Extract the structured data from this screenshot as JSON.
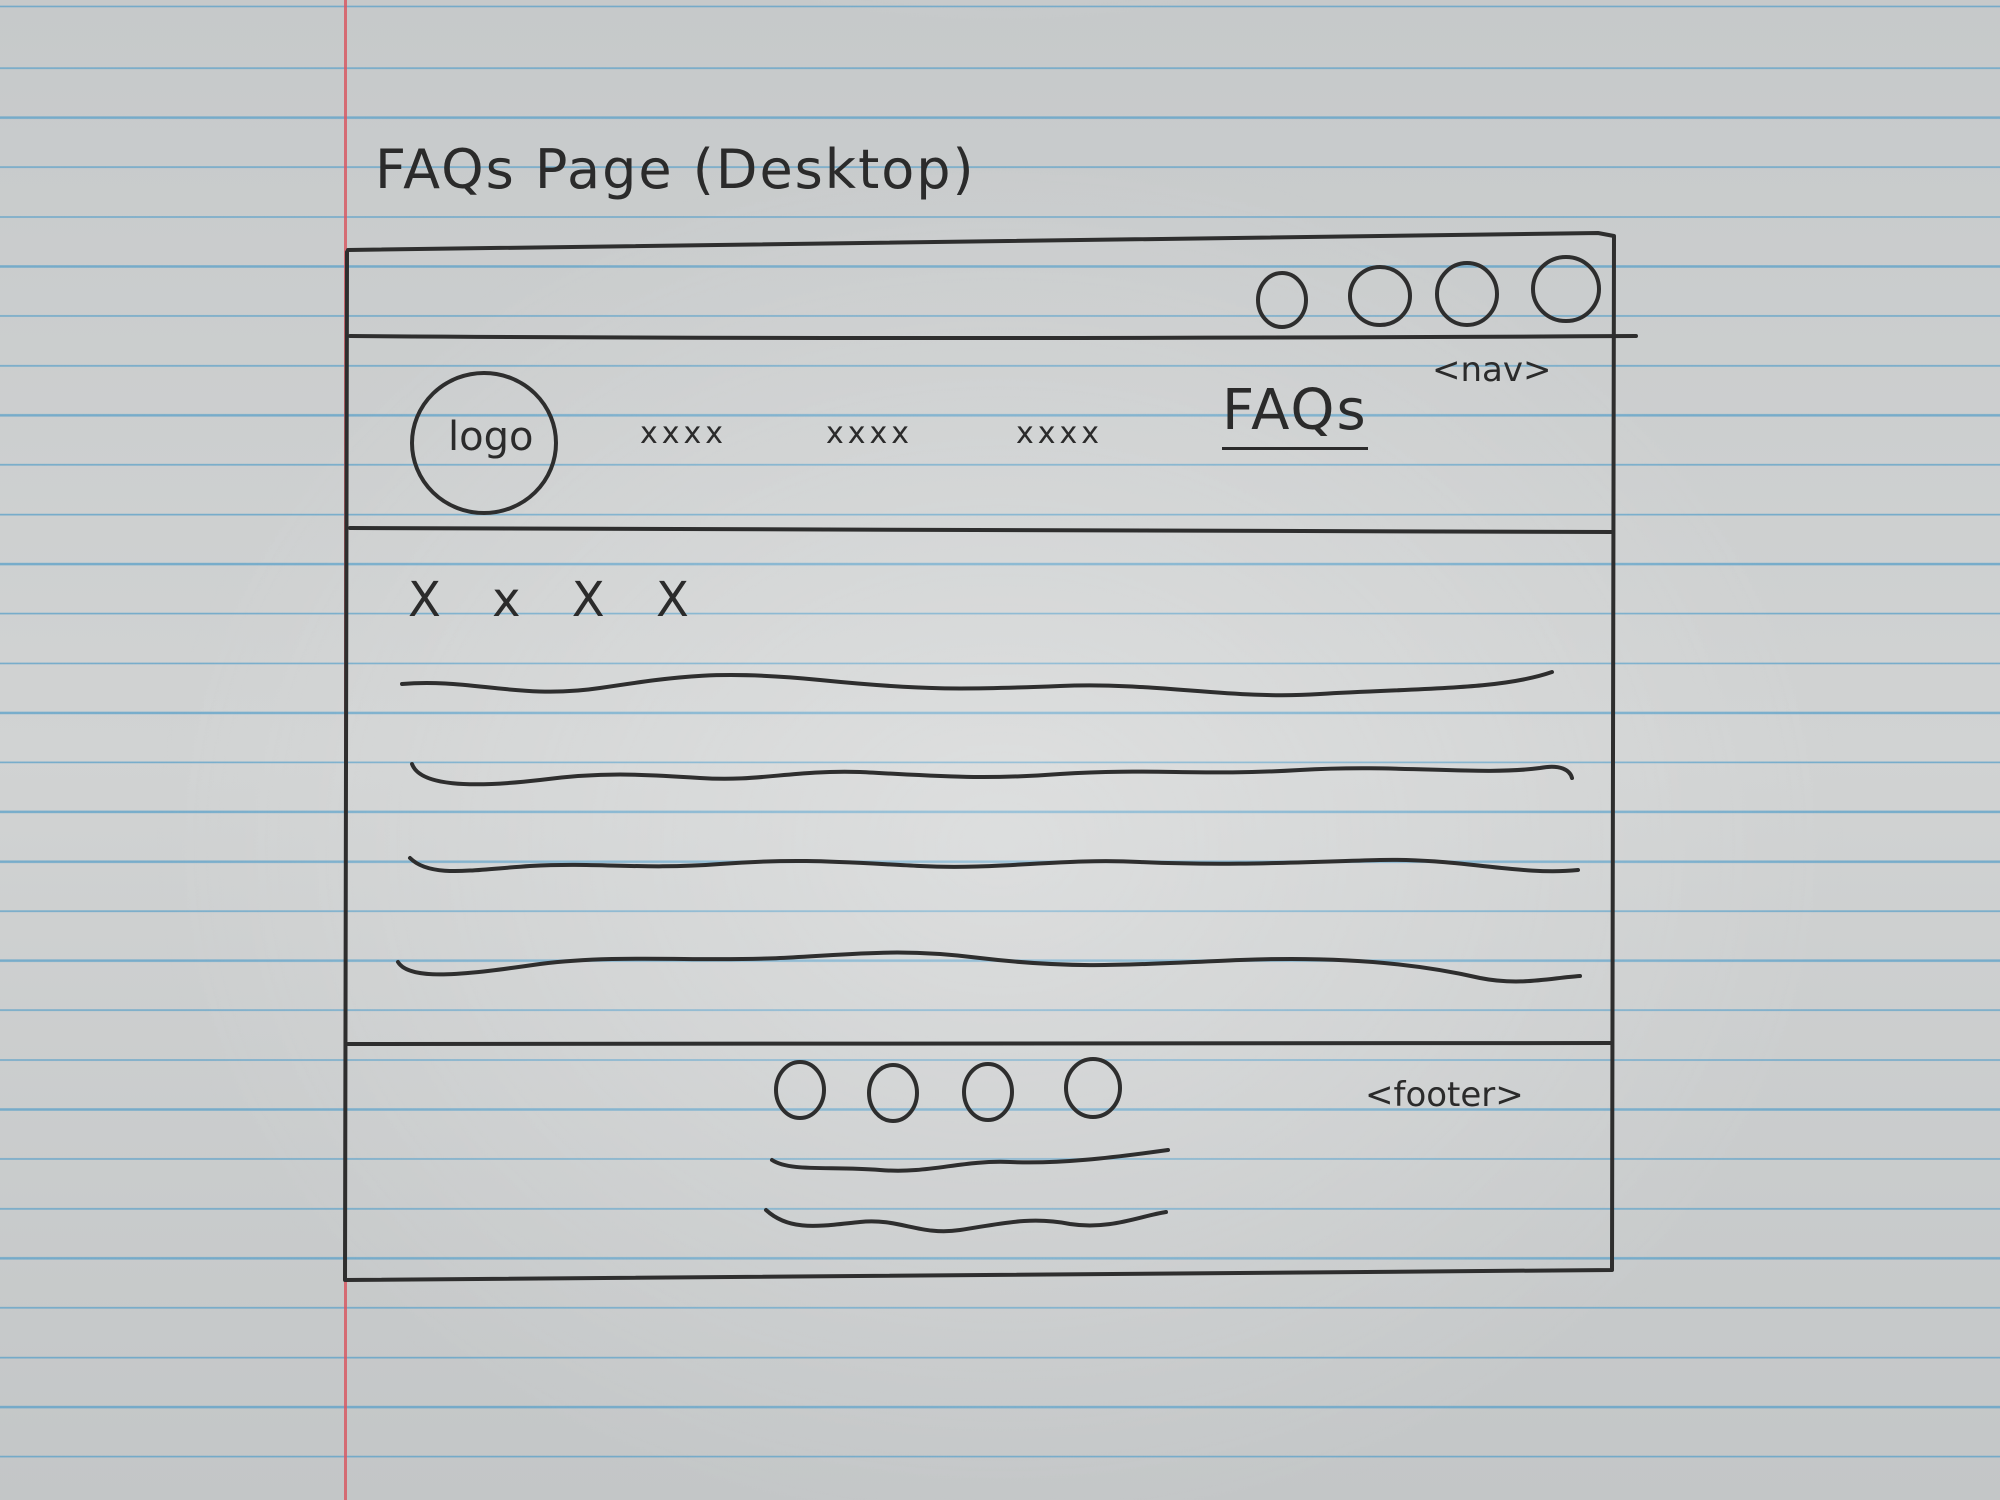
{
  "title": "FAQs Page (Desktop)",
  "nav": {
    "tag": "<nav>",
    "logo": "logo",
    "items": [
      "xxxx",
      "xxxx",
      "xxxx"
    ],
    "active_item": "FAQs",
    "top_circle_count": 4
  },
  "main": {
    "heading": "X x X X",
    "line_count": 4
  },
  "footer": {
    "tag": "<footer>",
    "circle_count": 4,
    "line_count": 2
  }
}
